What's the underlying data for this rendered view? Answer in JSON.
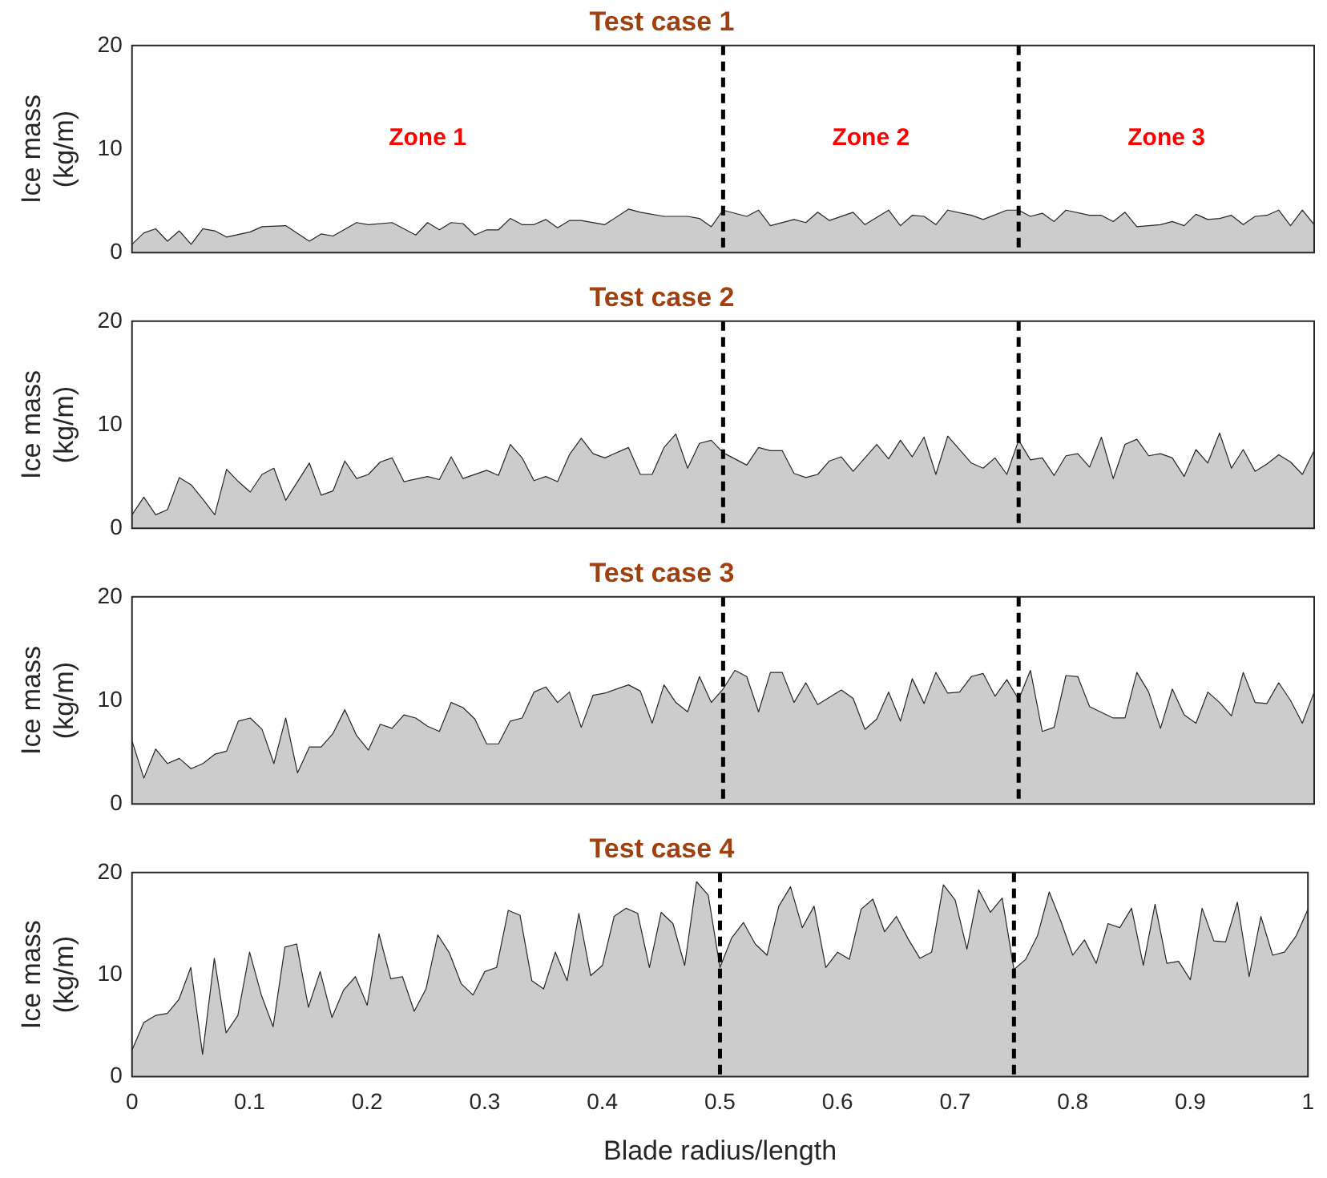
{
  "chart_data": [
    {
      "type": "area",
      "title": "Test case 1",
      "ylabel": "Ice mass (kg/m)",
      "xlim": [
        0,
        1
      ],
      "ylim": [
        0,
        20
      ],
      "yticks": [
        0,
        10,
        20
      ],
      "tick_labels": "y",
      "grid": false,
      "legend": false,
      "ref_lines": [
        {
          "axis": "x",
          "value": 0.5,
          "color": "#000000",
          "line_style": "dashed"
        },
        {
          "axis": "x",
          "value": 0.75,
          "color": "#000000",
          "line_style": "dashed"
        }
      ],
      "annotations": [
        "Zone 1",
        "Zone 2",
        "Zone 3"
      ],
      "series": [
        {
          "color": "#cccccc",
          "x": [
            0,
            0.01,
            0.02,
            0.03,
            0.04,
            0.05,
            0.06,
            0.07,
            0.08,
            0.1,
            0.11,
            0.13,
            0.15,
            0.16,
            0.17,
            0.19,
            0.2,
            0.22,
            0.24,
            0.25,
            0.26,
            0.27,
            0.28,
            0.29,
            0.3,
            0.31,
            0.32,
            0.33,
            0.34,
            0.35,
            0.36,
            0.37,
            0.38,
            0.4,
            0.42,
            0.43,
            0.45,
            0.47,
            0.48,
            0.49,
            0.5,
            0.52,
            0.53,
            0.54,
            0.56,
            0.57,
            0.58,
            0.59,
            0.61,
            0.62,
            0.64,
            0.65,
            0.66,
            0.67,
            0.68,
            0.69,
            0.71,
            0.72,
            0.74,
            0.75,
            0.76,
            0.77,
            0.78,
            0.79,
            0.81,
            0.82,
            0.83,
            0.84,
            0.85,
            0.87,
            0.88,
            0.89,
            0.9,
            0.91,
            0.92,
            0.93,
            0.94,
            0.95,
            0.96,
            0.97,
            0.98,
            0.99,
            1
          ],
          "values": [
            0.8,
            1.9,
            2.3,
            1.1,
            2.1,
            0.8,
            2.3,
            2.1,
            1.5,
            2.0,
            2.5,
            2.6,
            1.1,
            1.8,
            1.6,
            2.9,
            2.7,
            2.9,
            1.7,
            2.9,
            2.2,
            2.9,
            2.8,
            1.7,
            2.2,
            2.2,
            3.3,
            2.7,
            2.7,
            3.2,
            2.4,
            3.1,
            3.1,
            2.7,
            4.2,
            3.9,
            3.5,
            3.5,
            3.3,
            2.5,
            4.1,
            3.5,
            4.1,
            2.6,
            3.2,
            2.9,
            3.9,
            3.1,
            3.9,
            2.7,
            4.1,
            2.6,
            3.6,
            3.5,
            2.7,
            4.1,
            3.6,
            3.2,
            4.1,
            4.1,
            3.5,
            3.8,
            3.0,
            4.1,
            3.6,
            3.6,
            3.0,
            3.9,
            2.5,
            2.7,
            3.0,
            2.6,
            3.7,
            3.2,
            3.3,
            3.6,
            2.7,
            3.5,
            3.6,
            4.1,
            2.6,
            4.1,
            2.7
          ]
        }
      ]
    },
    {
      "type": "area",
      "title": "Test case 2",
      "ylabel": "Ice mass (kg/m)",
      "xlim": [
        0,
        1
      ],
      "ylim": [
        0,
        20
      ],
      "yticks": [
        0,
        10,
        20
      ],
      "tick_labels": "y",
      "grid": false,
      "legend": false,
      "ref_lines": [
        {
          "axis": "x",
          "value": 0.5,
          "color": "#000000",
          "line_style": "dashed"
        },
        {
          "axis": "x",
          "value": 0.75,
          "color": "#000000",
          "line_style": "dashed"
        }
      ],
      "series": [
        {
          "color": "#cccccc",
          "x": [
            0,
            0.01,
            0.02,
            0.03,
            0.04,
            0.05,
            0.06,
            0.07,
            0.08,
            0.09,
            0.1,
            0.11,
            0.12,
            0.13,
            0.15,
            0.16,
            0.17,
            0.18,
            0.19,
            0.2,
            0.21,
            0.22,
            0.23,
            0.25,
            0.26,
            0.27,
            0.28,
            0.3,
            0.31,
            0.32,
            0.33,
            0.34,
            0.35,
            0.36,
            0.37,
            0.38,
            0.39,
            0.4,
            0.42,
            0.43,
            0.44,
            0.45,
            0.46,
            0.47,
            0.48,
            0.49,
            0.5,
            0.52,
            0.53,
            0.54,
            0.55,
            0.56,
            0.57,
            0.58,
            0.59,
            0.6,
            0.61,
            0.63,
            0.64,
            0.65,
            0.66,
            0.67,
            0.68,
            0.69,
            0.71,
            0.72,
            0.73,
            0.74,
            0.75,
            0.76,
            0.77,
            0.78,
            0.79,
            0.8,
            0.81,
            0.82,
            0.83,
            0.84,
            0.85,
            0.86,
            0.87,
            0.88,
            0.89,
            0.9,
            0.91,
            0.92,
            0.93,
            0.94,
            0.95,
            0.96,
            0.97,
            0.98,
            0.99,
            1
          ],
          "values": [
            1.3,
            3.0,
            1.3,
            1.8,
            4.9,
            4.2,
            2.8,
            1.3,
            5.7,
            4.5,
            3.5,
            5.2,
            5.8,
            2.7,
            6.3,
            3.2,
            3.6,
            6.5,
            4.8,
            5.2,
            6.4,
            6.8,
            4.5,
            5.0,
            4.7,
            6.9,
            4.8,
            5.6,
            5.1,
            8.1,
            6.8,
            4.6,
            5.0,
            4.5,
            7.1,
            8.7,
            7.2,
            6.8,
            7.8,
            5.2,
            5.2,
            7.8,
            9.1,
            5.8,
            8.2,
            8.5,
            7.3,
            6.1,
            7.8,
            7.5,
            7.5,
            5.3,
            4.9,
            5.2,
            6.5,
            6.9,
            5.5,
            8.1,
            6.7,
            8.5,
            6.9,
            8.8,
            5.2,
            8.9,
            6.3,
            5.8,
            6.8,
            5.2,
            8.5,
            6.6,
            6.8,
            5.1,
            7.0,
            7.2,
            5.9,
            8.8,
            4.8,
            8.1,
            8.6,
            7.0,
            7.2,
            6.8,
            5.0,
            7.6,
            6.3,
            9.2,
            5.8,
            7.6,
            5.5,
            6.2,
            7.1,
            6.4,
            5.2,
            7.5
          ]
        }
      ]
    },
    {
      "type": "area",
      "title": "Test case 3",
      "ylabel": "Ice mass (kg/m)",
      "xlim": [
        0,
        1
      ],
      "ylim": [
        0,
        20
      ],
      "yticks": [
        0,
        10,
        20
      ],
      "tick_labels": "y",
      "grid": false,
      "legend": false,
      "ref_lines": [
        {
          "axis": "x",
          "value": 0.5,
          "color": "#000000",
          "line_style": "dashed"
        },
        {
          "axis": "x",
          "value": 0.75,
          "color": "#000000",
          "line_style": "dashed"
        }
      ],
      "series": [
        {
          "color": "#cccccc",
          "x": [
            0,
            0.01,
            0.02,
            0.03,
            0.04,
            0.05,
            0.06,
            0.07,
            0.08,
            0.09,
            0.1,
            0.11,
            0.12,
            0.13,
            0.14,
            0.15,
            0.16,
            0.17,
            0.18,
            0.19,
            0.2,
            0.21,
            0.22,
            0.23,
            0.24,
            0.25,
            0.26,
            0.27,
            0.28,
            0.29,
            0.3,
            0.31,
            0.32,
            0.33,
            0.34,
            0.35,
            0.36,
            0.37,
            0.38,
            0.39,
            0.4,
            0.42,
            0.43,
            0.44,
            0.45,
            0.46,
            0.47,
            0.48,
            0.49,
            0.5,
            0.51,
            0.52,
            0.53,
            0.54,
            0.55,
            0.56,
            0.57,
            0.58,
            0.6,
            0.61,
            0.62,
            0.63,
            0.64,
            0.65,
            0.66,
            0.67,
            0.68,
            0.69,
            0.7,
            0.71,
            0.72,
            0.73,
            0.74,
            0.75,
            0.76,
            0.77,
            0.78,
            0.79,
            0.8,
            0.81,
            0.83,
            0.84,
            0.85,
            0.86,
            0.87,
            0.88,
            0.89,
            0.9,
            0.91,
            0.92,
            0.93,
            0.94,
            0.95,
            0.96,
            0.97,
            0.98,
            0.99,
            1
          ],
          "values": [
            6.1,
            2.5,
            5.3,
            3.9,
            4.4,
            3.4,
            3.9,
            4.8,
            5.1,
            8.0,
            8.3,
            7.2,
            3.9,
            8.3,
            3.0,
            5.5,
            5.5,
            6.8,
            9.1,
            6.6,
            5.2,
            7.7,
            7.3,
            8.6,
            8.3,
            7.5,
            7.0,
            9.8,
            9.3,
            8.2,
            5.8,
            5.8,
            8.0,
            8.3,
            10.8,
            11.3,
            9.8,
            10.8,
            7.4,
            10.5,
            10.7,
            11.5,
            10.9,
            7.8,
            11.5,
            9.8,
            8.9,
            12.3,
            9.8,
            11.1,
            12.9,
            12.3,
            8.9,
            12.7,
            12.7,
            9.8,
            11.7,
            9.6,
            11.0,
            10.2,
            7.2,
            8.2,
            10.8,
            8.0,
            12.1,
            9.7,
            12.7,
            10.7,
            10.8,
            12.3,
            12.6,
            10.4,
            12.0,
            10.1,
            12.9,
            7.0,
            7.4,
            12.4,
            12.3,
            9.4,
            8.3,
            8.3,
            12.7,
            10.8,
            7.3,
            11.1,
            8.6,
            7.8,
            10.8,
            9.8,
            8.5,
            12.7,
            9.8,
            9.7,
            11.7,
            10.0,
            7.8,
            10.8
          ]
        }
      ]
    },
    {
      "type": "area",
      "title": "Test case 4",
      "xlabel": "Blade radius/length",
      "ylabel": "Ice mass (kg/m)",
      "xlim": [
        0,
        1
      ],
      "xticks": [
        0,
        0.1,
        0.2,
        0.3,
        0.4,
        0.5,
        0.6,
        0.7,
        0.8,
        0.9,
        1
      ],
      "ylim": [
        0,
        20
      ],
      "yticks": [
        0,
        10,
        20
      ],
      "grid": false,
      "legend": false,
      "ref_lines": [
        {
          "axis": "x",
          "value": 0.5,
          "color": "#000000",
          "line_style": "dashed"
        },
        {
          "axis": "x",
          "value": 0.75,
          "color": "#000000",
          "line_style": "dashed"
        }
      ],
      "series": [
        {
          "color": "#cccccc",
          "x": [
            0,
            0.01,
            0.02,
            0.03,
            0.04,
            0.05,
            0.06,
            0.07,
            0.08,
            0.09,
            0.1,
            0.11,
            0.12,
            0.13,
            0.14,
            0.15,
            0.16,
            0.17,
            0.18,
            0.19,
            0.2,
            0.21,
            0.22,
            0.23,
            0.24,
            0.25,
            0.26,
            0.27,
            0.28,
            0.29,
            0.3,
            0.31,
            0.32,
            0.33,
            0.34,
            0.35,
            0.36,
            0.37,
            0.38,
            0.39,
            0.4,
            0.41,
            0.42,
            0.43,
            0.44,
            0.45,
            0.46,
            0.47,
            0.48,
            0.49,
            0.5,
            0.51,
            0.52,
            0.53,
            0.54,
            0.55,
            0.56,
            0.57,
            0.58,
            0.59,
            0.6,
            0.61,
            0.62,
            0.63,
            0.64,
            0.65,
            0.66,
            0.67,
            0.68,
            0.69,
            0.7,
            0.71,
            0.72,
            0.73,
            0.74,
            0.75,
            0.76,
            0.77,
            0.78,
            0.79,
            0.8,
            0.81,
            0.82,
            0.83,
            0.84,
            0.85,
            0.86,
            0.87,
            0.88,
            0.89,
            0.9,
            0.91,
            0.92,
            0.93,
            0.94,
            0.95,
            0.96,
            0.97,
            0.98,
            0.99,
            1
          ],
          "values": [
            2.6,
            5.3,
            6.0,
            6.2,
            7.6,
            10.7,
            2.2,
            11.6,
            4.3,
            6.0,
            12.2,
            8.0,
            4.9,
            12.7,
            13.0,
            6.8,
            10.3,
            5.8,
            8.5,
            9.8,
            7.0,
            14.0,
            9.6,
            9.8,
            6.4,
            8.6,
            13.9,
            12.1,
            9.1,
            8.0,
            10.3,
            10.7,
            16.3,
            15.8,
            9.4,
            8.6,
            12.2,
            9.4,
            16.0,
            9.9,
            10.9,
            15.7,
            16.5,
            16.0,
            10.7,
            16.1,
            15.0,
            10.9,
            19.1,
            17.8,
            10.7,
            13.6,
            15.1,
            13.0,
            11.9,
            16.7,
            18.6,
            14.6,
            16.7,
            10.7,
            12.2,
            11.5,
            16.4,
            17.4,
            14.2,
            15.7,
            13.5,
            11.6,
            12.2,
            18.8,
            17.3,
            12.5,
            18.3,
            16.1,
            17.5,
            10.5,
            11.5,
            13.8,
            18.1,
            15.2,
            11.9,
            13.4,
            11.1,
            15.0,
            14.6,
            16.5,
            10.9,
            16.9,
            11.1,
            11.3,
            9.5,
            16.5,
            13.3,
            13.2,
            17.1,
            9.8,
            15.7,
            11.9,
            12.2,
            13.8,
            16.4
          ]
        }
      ]
    }
  ]
}
